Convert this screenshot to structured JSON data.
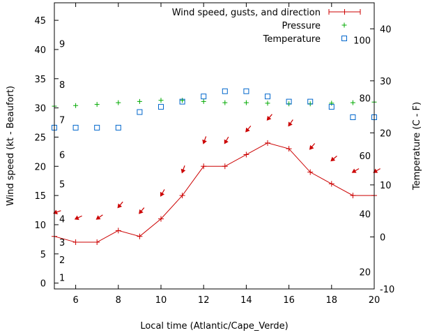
{
  "chart_data": {
    "type": "line",
    "xlabel": "Local time (Atlantic/Cape_Verde)",
    "ylabel_left": "Wind speed (kt - Beaufort)",
    "ylabel_right": "Temperature (C - F)",
    "xlim": [
      5,
      20
    ],
    "ylim_left": [
      -1,
      48
    ],
    "ylim_right": [
      -10,
      45
    ],
    "x_ticks": [
      6,
      8,
      10,
      12,
      14,
      16,
      18,
      20
    ],
    "y_left_ticks": [
      0,
      5,
      10,
      15,
      20,
      25,
      30,
      35,
      40,
      45
    ],
    "y_right_ticks": [
      -10,
      0,
      10,
      20,
      30,
      40
    ],
    "grid": false,
    "legend": "top-right",
    "beaufort_labels": [
      {
        "label": "1",
        "kt": 1
      },
      {
        "label": "2",
        "kt": 4
      },
      {
        "label": "3",
        "kt": 7
      },
      {
        "label": "4",
        "kt": 11
      },
      {
        "label": "5",
        "kt": 17
      },
      {
        "label": "6",
        "kt": 22
      },
      {
        "label": "7",
        "kt": 28
      },
      {
        "label": "8",
        "kt": 34
      },
      {
        "label": "9",
        "kt": 41
      }
    ],
    "fahrenheit_labels": [
      {
        "label": "20",
        "celsius": -6.7
      },
      {
        "label": "40",
        "celsius": 4.4
      },
      {
        "label": "60",
        "celsius": 15.6
      },
      {
        "label": "80",
        "celsius": 26.7
      },
      {
        "label": "100",
        "celsius": 37.8
      }
    ],
    "series": [
      {
        "name": "Wind speed, gusts, and direction",
        "axis": "left",
        "color": "#cc0000",
        "x": [
          5,
          6,
          7,
          8,
          9,
          10,
          11,
          12,
          13,
          14,
          15,
          16,
          17,
          18,
          19,
          20
        ],
        "values": [
          8,
          7,
          7,
          9,
          8,
          11,
          15,
          20,
          20,
          22,
          24,
          23,
          19,
          17,
          15,
          15
        ],
        "gusts": [
          12,
          11,
          11,
          13,
          12,
          15,
          19,
          24,
          24,
          26,
          28,
          27,
          23,
          21,
          19,
          19
        ],
        "direction_deg": [
          70,
          65,
          55,
          40,
          40,
          30,
          20,
          20,
          30,
          40,
          40,
          35,
          40,
          50,
          60,
          60
        ]
      },
      {
        "name": "Pressure",
        "axis": "left",
        "color": "#00aa00",
        "x": [
          5,
          6,
          7,
          8,
          9,
          10,
          11,
          12,
          13,
          14,
          15,
          16,
          17,
          18,
          19,
          20
        ],
        "values": [
          30.3,
          30.4,
          30.6,
          30.9,
          31.1,
          31.3,
          31.3,
          31.1,
          30.9,
          30.9,
          30.8,
          30.7,
          30.7,
          30.8,
          30.9,
          31.0
        ]
      },
      {
        "name": "Temperature",
        "axis": "right",
        "color": "#0066cc",
        "x": [
          5,
          6,
          7,
          8,
          9,
          10,
          11,
          12,
          13,
          14,
          15,
          16,
          17,
          18,
          19,
          20
        ],
        "values": [
          21,
          21,
          21,
          21,
          24,
          25,
          26,
          27,
          28,
          28,
          27,
          26,
          26,
          25,
          23,
          23
        ]
      }
    ]
  }
}
